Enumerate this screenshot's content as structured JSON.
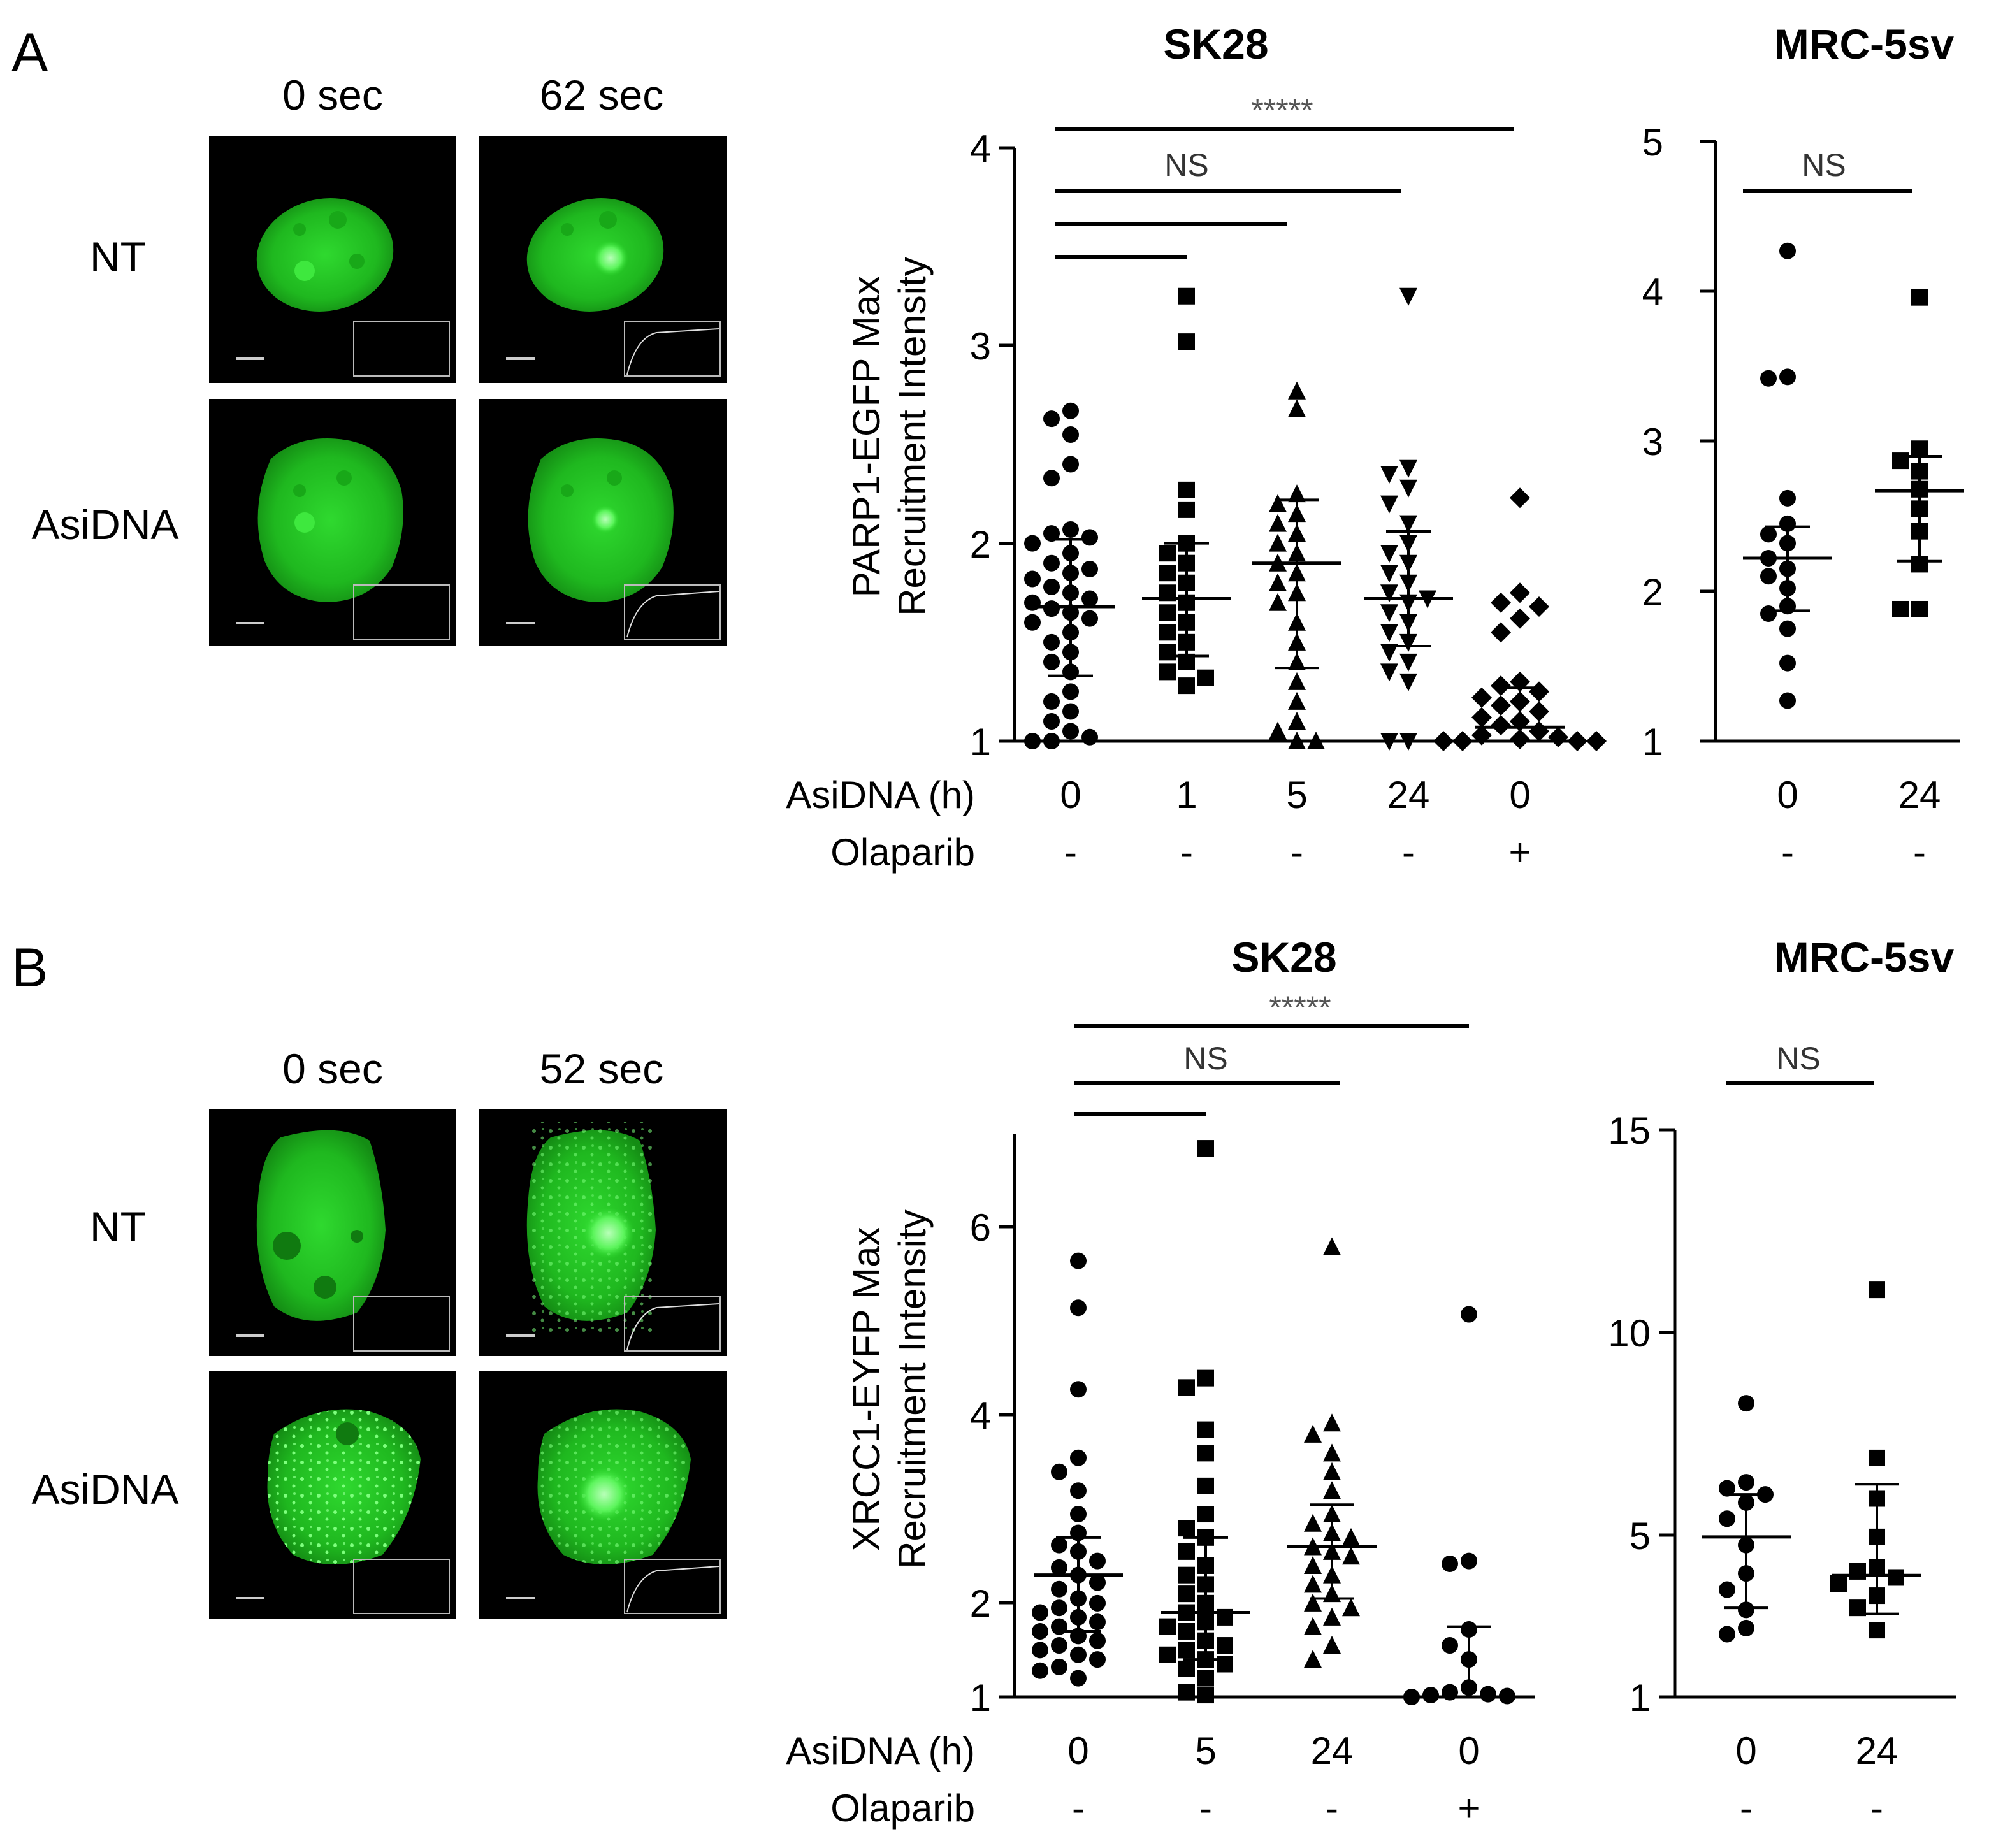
{
  "panel_a": {
    "label": "A",
    "micrographs": {
      "times": [
        "0 sec",
        "62 sec"
      ],
      "conditions": [
        "NT",
        "AsiDNA"
      ]
    },
    "sk28": {
      "title": "SK28",
      "ylabel": [
        "PARP1-EGFP Max",
        "Recruitment Intensity"
      ],
      "yticks": [
        "4",
        "3",
        "2",
        "1"
      ],
      "row1_label": "AsiDNA (h)",
      "row2_label": "Olaparib",
      "x_labels": [
        "0",
        "1",
        "5",
        "24",
        "0"
      ],
      "olaparib": [
        "-",
        "-",
        "-",
        "-",
        "+"
      ],
      "significance": [
        "*****",
        "NS"
      ]
    },
    "mrc": {
      "title": "MRC-5sv",
      "yticks": [
        "5",
        "4",
        "3",
        "2",
        "1"
      ],
      "x_labels": [
        "0",
        "24"
      ],
      "olaparib": [
        "-",
        "-"
      ],
      "significance": [
        "NS"
      ]
    }
  },
  "panel_b": {
    "label": "B",
    "micrographs": {
      "times": [
        "0 sec",
        "52 sec"
      ],
      "conditions": [
        "NT",
        "AsiDNA"
      ]
    },
    "sk28": {
      "title": "SK28",
      "ylabel": [
        "XRCC1-EYFP Max",
        "Recruitment Intensity"
      ],
      "yticks": [
        "6",
        "4",
        "2",
        "1"
      ],
      "row1_label": "AsiDNA (h)",
      "row2_label": "Olaparib",
      "x_labels": [
        "0",
        "5",
        "24",
        "0"
      ],
      "olaparib": [
        "-",
        "-",
        "-",
        "+"
      ],
      "significance": [
        "*****",
        "NS"
      ]
    },
    "mrc": {
      "title": "MRC-5sv",
      "yticks": [
        "15",
        "10",
        "5",
        "1"
      ],
      "x_labels": [
        "0",
        "24"
      ],
      "olaparib": [
        "-",
        "-"
      ],
      "significance": [
        "NS"
      ]
    }
  },
  "chart_data": [
    {
      "type": "scatter",
      "title": "SK28",
      "ylabel": "PARP1-EGFP Max Recruitment Intensity",
      "ylim": [
        1,
        4
      ],
      "categories": [
        "0",
        "1",
        "5",
        "24",
        "0"
      ],
      "series": [
        {
          "values": [
            2.67,
            2.63,
            2.55,
            2.4,
            2.33,
            2.07,
            2.05,
            2.03,
            2.0,
            1.95,
            1.9,
            1.87,
            1.85,
            1.82,
            1.78,
            1.75,
            1.72,
            1.7,
            1.67,
            1.65,
            1.62,
            1.6,
            1.55,
            1.5,
            1.45,
            1.4,
            1.35,
            1.25,
            1.2,
            1.15,
            1.1,
            1.05,
            1.02,
            1.0,
            0.98
          ]
        },
        {
          "values": [
            3.25,
            3.02,
            2.27,
            2.17,
            2.0,
            1.95,
            1.9,
            1.85,
            1.8,
            1.75,
            1.7,
            1.65,
            1.6,
            1.55,
            1.5,
            1.45,
            1.4,
            1.35,
            1.32,
            1.28
          ]
        },
        {
          "values": [
            2.77,
            2.68,
            2.25,
            2.2,
            2.15,
            2.1,
            2.05,
            2.0,
            1.95,
            1.9,
            1.85,
            1.8,
            1.75,
            1.7,
            1.6,
            1.5,
            1.4,
            1.3,
            1.2,
            1.1,
            1.05,
            1.0,
            0.98
          ]
        },
        {
          "values": [
            3.25,
            2.38,
            2.35,
            2.28,
            2.2,
            2.1,
            2.0,
            1.95,
            1.9,
            1.85,
            1.8,
            1.75,
            1.72,
            1.7,
            1.65,
            1.6,
            1.55,
            1.5,
            1.45,
            1.4,
            1.35,
            1.3,
            1.0,
            1.0
          ]
        },
        {
          "values": [
            2.23,
            1.75,
            1.7,
            1.68,
            1.62,
            1.55,
            1.3,
            1.28,
            1.25,
            1.22,
            1.2,
            1.18,
            1.15,
            1.12,
            1.1,
            1.08,
            1.05,
            1.03,
            1.02,
            1.01,
            1.0,
            1.0,
            1.0,
            0.99
          ]
        }
      ],
      "markers": [
        "circle",
        "square",
        "triangle-up",
        "triangle-down",
        "diamond"
      ],
      "mean": [
        1.68,
        1.72,
        1.9,
        1.72,
        1.07
      ],
      "sd_low": [
        1.33,
        1.43,
        1.37,
        1.48,
        1.0
      ],
      "sd_high": [
        2.02,
        2.0,
        2.22,
        2.06,
        1.27
      ],
      "brackets": [
        {
          "from": 0,
          "to": 4,
          "label": "*****"
        },
        {
          "from": 0,
          "to": 3,
          "label": "NS"
        },
        {
          "from": 0,
          "to": 2,
          "label": ""
        },
        {
          "from": 0,
          "to": 1,
          "label": ""
        }
      ]
    },
    {
      "type": "scatter",
      "title": "MRC-5sv",
      "ylim": [
        1,
        5
      ],
      "categories": [
        "0",
        "24"
      ],
      "series": [
        {
          "values": [
            4.27,
            3.43,
            3.42,
            2.62,
            2.45,
            2.38,
            2.32,
            2.22,
            2.15,
            2.1,
            2.02,
            1.9,
            1.85,
            1.75,
            1.52,
            1.27
          ]
        },
        {
          "values": [
            3.96,
            2.95,
            2.87,
            2.8,
            2.68,
            2.55,
            2.4,
            2.18,
            1.88,
            1.88
          ]
        }
      ],
      "markers": [
        "circle",
        "square"
      ],
      "mean": [
        2.22,
        2.67
      ],
      "sd_low": [
        1.87,
        2.2
      ],
      "sd_high": [
        2.43,
        2.9
      ],
      "brackets": [
        {
          "from": 0,
          "to": 1,
          "label": "NS"
        }
      ]
    },
    {
      "type": "scatter",
      "title": "SK28",
      "ylabel": "XRCC1-EYFP Max Recruitment Intensity",
      "ylim": [
        1,
        7
      ],
      "categories": [
        "0",
        "5",
        "24",
        "0"
      ],
      "series": [
        {
          "values": [
            5.65,
            5.15,
            4.28,
            3.55,
            3.4,
            3.2,
            2.95,
            2.75,
            2.62,
            2.55,
            2.45,
            2.38,
            2.3,
            2.22,
            2.15,
            2.05,
            2.0,
            1.95,
            1.9,
            1.85,
            1.8,
            1.75,
            1.7,
            1.65,
            1.6,
            1.55,
            1.5,
            1.45,
            1.4,
            1.32,
            1.28,
            1.2
          ]
        },
        {
          "values": [
            6.85,
            4.4,
            4.3,
            3.85,
            3.6,
            3.25,
            2.95,
            2.8,
            2.7,
            2.55,
            2.4,
            2.3,
            2.2,
            2.1,
            2.0,
            1.9,
            1.85,
            1.8,
            1.75,
            1.7,
            1.6,
            1.55,
            1.5,
            1.45,
            1.4,
            1.35,
            1.3,
            1.2,
            1.05,
            1.02
          ]
        },
        {
          "values": [
            5.8,
            3.92,
            3.8,
            3.6,
            3.4,
            3.2,
            2.95,
            2.85,
            2.75,
            2.7,
            2.6,
            2.55,
            2.5,
            2.4,
            2.3,
            2.2,
            2.1,
            2.0,
            1.95,
            1.85,
            1.75,
            1.55,
            1.4
          ]
        },
        {
          "values": [
            5.08,
            2.45,
            2.42,
            1.72,
            1.55,
            1.4,
            1.1,
            1.05,
            1.03,
            1.02,
            1.01,
            1.0
          ]
        }
      ],
      "markers": [
        "circle",
        "square",
        "triangle-up",
        "circle"
      ],
      "mean": [
        2.3,
        1.9,
        2.6,
        1.0
      ],
      "sd_low": [
        1.7,
        1.4,
        2.05,
        1.0
      ],
      "sd_high": [
        2.7,
        2.7,
        3.05,
        1.75
      ],
      "brackets": [
        {
          "from": 0,
          "to": 3,
          "label": "*****"
        },
        {
          "from": 0,
          "to": 2,
          "label": "NS"
        },
        {
          "from": 0,
          "to": 1,
          "label": ""
        }
      ]
    },
    {
      "type": "scatter",
      "title": "MRC-5sv",
      "ylim": [
        1,
        15
      ],
      "categories": [
        "0",
        "24"
      ],
      "series": [
        {
          "values": [
            8.25,
            6.3,
            6.15,
            6.0,
            5.8,
            5.4,
            4.75,
            4.05,
            3.65,
            3.15,
            2.7,
            2.55
          ]
        },
        {
          "values": [
            11.05,
            6.9,
            5.9,
            4.95,
            4.2,
            4.1,
            3.95,
            3.8,
            3.5,
            3.2,
            2.65
          ]
        }
      ],
      "markers": [
        "circle",
        "square"
      ],
      "mean": [
        4.95,
        4.0
      ],
      "sd_low": [
        3.2,
        3.05
      ],
      "sd_high": [
        6.0,
        6.25
      ],
      "brackets": [
        {
          "from": 0,
          "to": 1,
          "label": "NS"
        }
      ]
    }
  ]
}
